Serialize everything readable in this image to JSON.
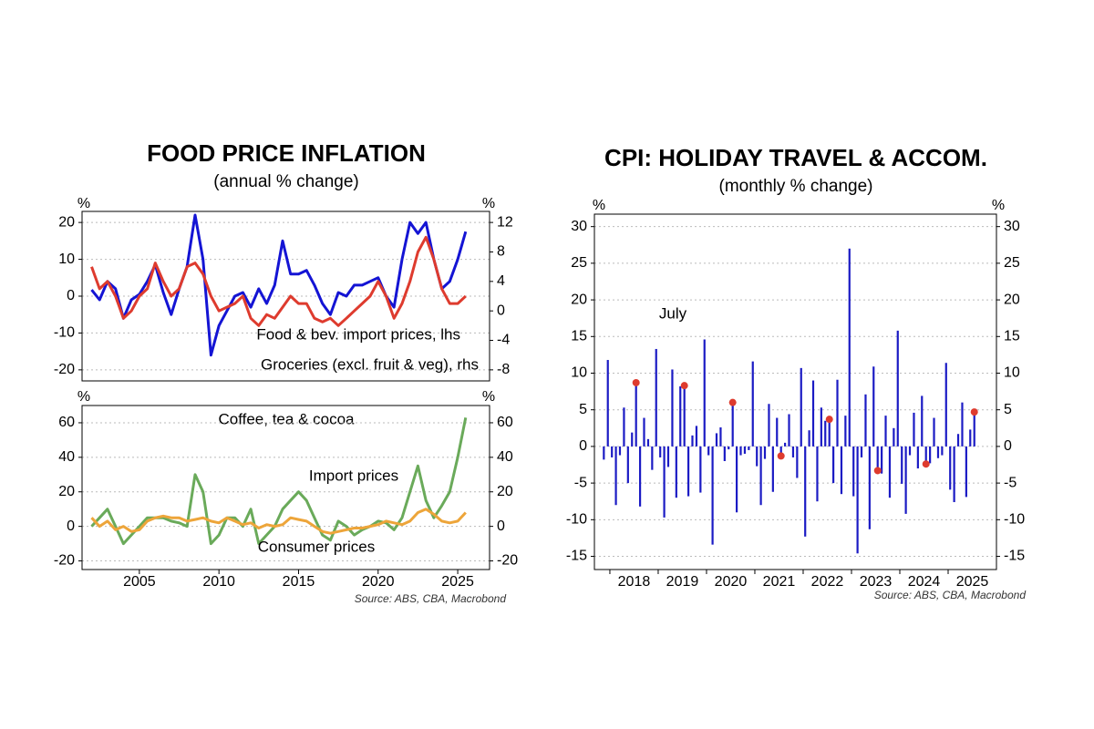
{
  "chart_data": [
    {
      "type": "line",
      "title": "FOOD PRICE INFLATION",
      "subtitle": "(annual % change)",
      "y_label": "%",
      "y2_label": "%",
      "x": [
        2002,
        2002.5,
        2003,
        2003.5,
        2004,
        2004.5,
        2005,
        2005.5,
        2006,
        2006.5,
        2007,
        2007.5,
        2008,
        2008.5,
        2009,
        2009.5,
        2010,
        2010.5,
        2011,
        2011.5,
        2012,
        2012.5,
        2013,
        2013.5,
        2014,
        2014.5,
        2015,
        2015.5,
        2016,
        2016.5,
        2017,
        2017.5,
        2018,
        2018.5,
        2019,
        2019.5,
        2020,
        2020.5,
        2021,
        2021.5,
        2022,
        2022.5,
        2023,
        2023.5,
        2024,
        2024.5,
        2025,
        2025.5
      ],
      "xlim": [
        2001.4,
        2027
      ],
      "ylim": [
        -23,
        23
      ],
      "yticks": [
        -20,
        -10,
        0,
        10,
        20
      ],
      "y2lim": [
        -9.5,
        13.5
      ],
      "y2ticks": [
        -8,
        -4,
        0,
        4,
        8,
        12
      ],
      "grid": true,
      "series": [
        {
          "name": "Food & bev. import prices, lhs",
          "color": "#1414d4",
          "values": [
            1.7,
            -1,
            4,
            2,
            -6,
            -1,
            0.5,
            4,
            8.5,
            1,
            -5,
            2,
            8,
            22,
            10,
            -16,
            -8,
            -4,
            0,
            1,
            -3,
            2,
            -2,
            3,
            15,
            6,
            6,
            7,
            3,
            -2,
            -5,
            1,
            0,
            3,
            3,
            4,
            5,
            0,
            -3,
            10,
            20,
            17,
            20,
            10,
            2,
            4,
            10,
            17.5
          ]
        },
        {
          "name": "Groceries (excl. fruit & veg), rhs",
          "color": "#de3b2e",
          "axis": "y2",
          "values": [
            6,
            3,
            4,
            2,
            -1,
            0,
            2,
            3,
            6.5,
            4,
            2,
            3,
            6,
            6.5,
            5,
            2,
            0,
            0.5,
            1,
            2,
            -1,
            -2,
            -0.5,
            -1,
            0.5,
            2,
            1,
            1,
            -1,
            -1.5,
            -1,
            -2,
            -1,
            0,
            1,
            2,
            4,
            2,
            -1,
            1,
            4,
            8,
            10,
            7,
            3,
            1,
            1,
            2
          ]
        }
      ]
    },
    {
      "type": "line",
      "title": "Coffee, tea & cocoa",
      "y_label": "%",
      "y2_label": "%",
      "x": [
        2002,
        2002.5,
        2003,
        2003.5,
        2004,
        2004.5,
        2005,
        2005.5,
        2006,
        2006.5,
        2007,
        2007.5,
        2008,
        2008.5,
        2009,
        2009.5,
        2010,
        2010.5,
        2011,
        2011.5,
        2012,
        2012.5,
        2013,
        2013.5,
        2014,
        2014.5,
        2015,
        2015.5,
        2016,
        2016.5,
        2017,
        2017.5,
        2018,
        2018.5,
        2019,
        2019.5,
        2020,
        2020.5,
        2021,
        2021.5,
        2022,
        2022.5,
        2023,
        2023.5,
        2024,
        2024.5,
        2025,
        2025.5
      ],
      "xlim": [
        2001.4,
        2027
      ],
      "xticks": [
        2005,
        2010,
        2015,
        2020,
        2025
      ],
      "ylim": [
        -25,
        70
      ],
      "yticks": [
        -20,
        0,
        20,
        40,
        60
      ],
      "y2lim": [
        -25,
        70
      ],
      "y2ticks": [
        -20,
        0,
        20,
        40,
        60
      ],
      "grid": true,
      "series": [
        {
          "name": "Import prices",
          "color": "#6aaa5a",
          "values": [
            0,
            5,
            10,
            0,
            -10,
            -5,
            0,
            5,
            5,
            5,
            3,
            2,
            0,
            30,
            20,
            -10,
            -5,
            5,
            5,
            0,
            10,
            -10,
            -5,
            0,
            10,
            15,
            20,
            15,
            5,
            -5,
            -8,
            3,
            0,
            -5,
            -2,
            0,
            3,
            2,
            -2,
            5,
            20,
            35,
            15,
            5,
            12,
            20,
            40,
            63
          ]
        },
        {
          "name": "Consumer prices",
          "color": "#eda53a",
          "values": [
            5,
            0,
            3,
            -2,
            0,
            -3,
            -2,
            3,
            5,
            6,
            5,
            5,
            3,
            4,
            5,
            3,
            2,
            5,
            3,
            1,
            2,
            -1,
            1,
            0,
            1,
            5,
            4,
            3,
            0,
            -3,
            -4,
            -3,
            -2,
            -1,
            -1,
            0,
            1,
            3,
            2,
            1,
            3,
            8,
            10,
            7,
            3,
            2,
            3,
            8
          ]
        }
      ],
      "source": "Source: ABS, CBA, Macrobond"
    },
    {
      "type": "bar",
      "title": "CPI: HOLIDAY TRAVEL & ACCOM.",
      "subtitle": "(monthly % change)",
      "y_label": "%",
      "y2_label": "%",
      "x": [
        2017.875,
        2017.958,
        2018.042,
        2018.125,
        2018.208,
        2018.292,
        2018.375,
        2018.458,
        2018.542,
        2018.625,
        2018.708,
        2018.792,
        2018.875,
        2018.958,
        2019.042,
        2019.125,
        2019.208,
        2019.292,
        2019.375,
        2019.458,
        2019.542,
        2019.625,
        2019.708,
        2019.792,
        2019.875,
        2019.958,
        2020.042,
        2020.125,
        2020.208,
        2020.292,
        2020.375,
        2020.458,
        2020.542,
        2020.625,
        2020.708,
        2020.792,
        2020.875,
        2020.958,
        2021.042,
        2021.125,
        2021.208,
        2021.292,
        2021.375,
        2021.458,
        2021.542,
        2021.625,
        2021.708,
        2021.792,
        2021.875,
        2021.958,
        2022.042,
        2022.125,
        2022.208,
        2022.292,
        2022.375,
        2022.458,
        2022.542,
        2022.625,
        2022.708,
        2022.792,
        2022.875,
        2022.958,
        2023.042,
        2023.125,
        2023.208,
        2023.292,
        2023.375,
        2023.458,
        2023.542,
        2023.625,
        2023.708,
        2023.792,
        2023.875,
        2023.958,
        2024.042,
        2024.125,
        2024.208,
        2024.292,
        2024.375,
        2024.458,
        2024.542,
        2024.625,
        2024.708,
        2024.792,
        2024.875,
        2024.958,
        2025.042,
        2025.125,
        2025.208,
        2025.292,
        2025.375,
        2025.458,
        2025.542
      ],
      "xlim": [
        2017.68,
        2026
      ],
      "xticks": [
        2018,
        2019,
        2020,
        2021,
        2022,
        2023,
        2024,
        2025
      ],
      "ylim": [
        -16.8,
        31.7
      ],
      "yticks": [
        -15,
        -10,
        -5,
        0,
        5,
        10,
        15,
        20,
        25,
        30
      ],
      "y2lim": [
        -16.8,
        31.7
      ],
      "y2ticks": [
        -15,
        -10,
        -5,
        0,
        5,
        10,
        15,
        20,
        25,
        30
      ],
      "grid": true,
      "series": [
        {
          "color": "#1b1bc4",
          "values": [
            -1.8,
            11.8,
            -1.5,
            -8,
            -1.2,
            5.3,
            -5,
            1.9,
            8.7,
            -8.2,
            3.9,
            1,
            -3.2,
            13.3,
            -1.5,
            -9.7,
            -2.8,
            10.5,
            -7,
            8.2,
            8.3,
            -6.8,
            1.5,
            2.8,
            -6.3,
            14.6,
            -1.2,
            -13.4,
            1.8,
            2.6,
            -2,
            -0.4,
            6,
            -9,
            -1.2,
            -1,
            -0.5,
            11.6,
            -2.7,
            -8,
            -1.7,
            5.8,
            -6.2,
            3.9,
            -1.3,
            0.5,
            4.4,
            -1.5,
            -4.3,
            10.7,
            -12.3,
            2.2,
            9,
            -7.5,
            5.3,
            3.5,
            3.7,
            -5,
            9.1,
            -6.5,
            4.2,
            27,
            -6.8,
            -14.6,
            -1.5,
            7.1,
            -11.3,
            10.9,
            -3.3,
            -3.7,
            4.2,
            -7,
            2.5,
            15.8,
            -5.1,
            -9.2,
            -1.2,
            4.6,
            -3,
            6.9,
            -2.4,
            -2.3,
            3.9,
            -1.6,
            -1.2,
            11.4,
            -5.9,
            -7.6,
            1.7,
            6,
            -6.9,
            2.3,
            4.7
          ]
        },
        {
          "name": "July",
          "color": "#de3b2e",
          "marker": "dot",
          "values": [
            null,
            null,
            null,
            null,
            null,
            null,
            null,
            null,
            8.7,
            null,
            null,
            null,
            null,
            null,
            null,
            null,
            null,
            null,
            null,
            null,
            8.3,
            null,
            null,
            null,
            null,
            null,
            null,
            null,
            null,
            null,
            null,
            null,
            6,
            null,
            null,
            null,
            null,
            null,
            null,
            null,
            null,
            null,
            null,
            null,
            -1.3,
            null,
            null,
            null,
            null,
            null,
            null,
            null,
            null,
            null,
            null,
            null,
            3.7,
            null,
            null,
            null,
            null,
            null,
            null,
            null,
            null,
            null,
            null,
            null,
            -3.3,
            null,
            null,
            null,
            null,
            null,
            null,
            null,
            null,
            null,
            null,
            null,
            -2.4,
            null,
            null,
            null,
            null,
            null,
            null,
            null,
            null,
            null,
            null,
            null,
            4.7
          ]
        }
      ],
      "source": "Source: ABS, CBA, Macrobond"
    }
  ]
}
